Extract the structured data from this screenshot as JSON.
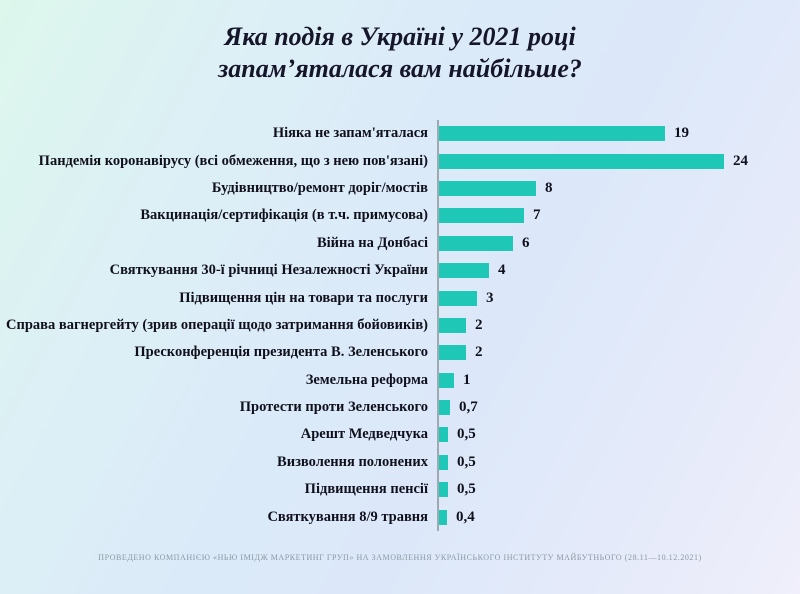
{
  "title_display": "Яка подія в Україні у 2021 році\nзапам’яталася вам найбільше?",
  "footnote": "ПРОВЕДЕНО КОМПАНІЄЮ «НЬЮ ІМІДЖ МАРКЕТИНГ ГРУП» НА ЗАМОВЛЕННЯ УКРАЇНСЬКОГО ІНСТИТУТУ МАЙБУТНЬОГО (28.11—10.12.2021)",
  "chart_data": {
    "type": "bar",
    "orientation": "horizontal",
    "title": "Яка подія в Україні у 2021 році запам’яталася вам найбільше?",
    "categories": [
      "Ніяка не запам'яталася",
      "Пандемія коронавірусу (всі обмеження, що з нею пов'язані)",
      "Будівництво/ремонт доріг/мостів",
      "Вакцинація/сертифікація (в т.ч. примусова)",
      "Війна на Донбасі",
      "Святкування 30-ї річниці Незалежності України",
      "Підвищення цін на товари та послуги",
      "Справа вагнергейту (зрив операції щодо затримання бойовиків)",
      "Пресконференція президента В. Зеленського",
      "Земельна реформа",
      "Протести проти Зеленського",
      "Арешт Медведчука",
      "Визволення полонених",
      "Підвищення пенсії",
      "Святкування 8/9 травня"
    ],
    "values": [
      19,
      24,
      8,
      7,
      6,
      4,
      3,
      2,
      2,
      1,
      0.7,
      0.5,
      0.5,
      0.5,
      0.4
    ],
    "value_labels": [
      "19",
      "24",
      "8",
      "7",
      "6",
      "4",
      "3",
      "2",
      "2",
      "1",
      "0,7",
      "0,5",
      "0,5",
      "0,5",
      "0,4"
    ],
    "xlim": [
      0,
      24
    ],
    "bar_color": "#1fc8b6",
    "axis_line_color": "#9faab0",
    "grid": false,
    "legend": false,
    "data_labels_position": "end-of-bar"
  }
}
